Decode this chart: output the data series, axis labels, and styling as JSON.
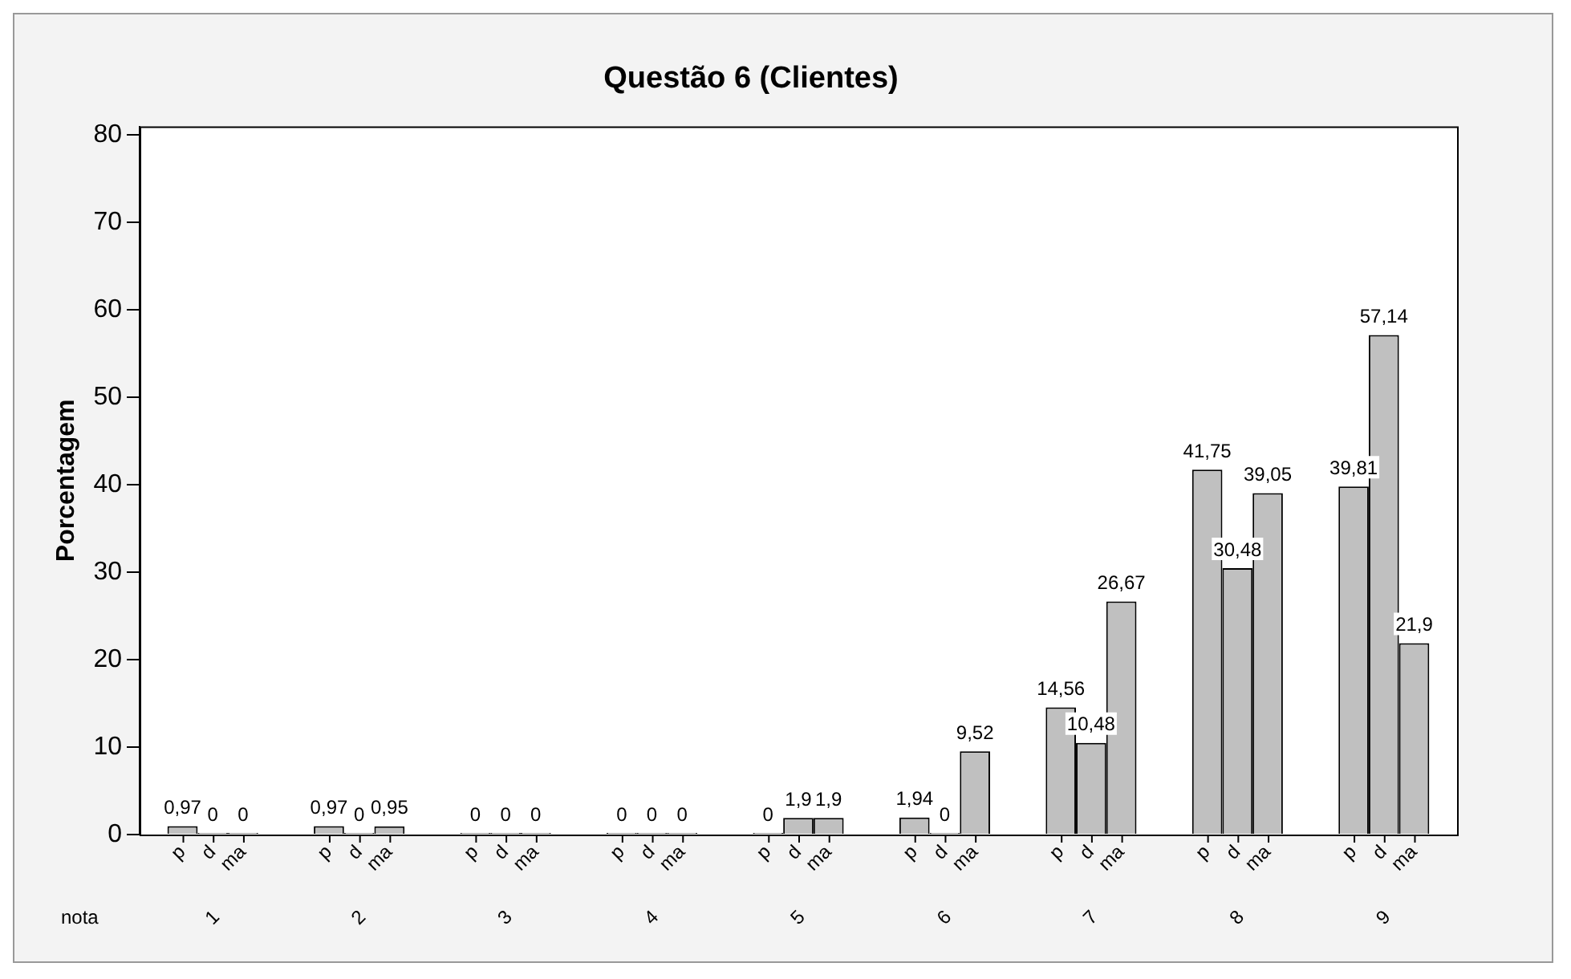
{
  "chart_data": {
    "type": "bar",
    "title": "Questão 6 (Clientes)",
    "ylabel": "Porcentagem",
    "xlabel": "nota",
    "categories": [
      "1",
      "2",
      "3",
      "4",
      "5",
      "6",
      "7",
      "8",
      "9"
    ],
    "series": [
      {
        "name": "p",
        "color": "#c0c0c0",
        "values": [
          0.97,
          0.97,
          0,
          0,
          0,
          1.94,
          14.56,
          41.75,
          39.81
        ],
        "value_labels": [
          "0,97",
          "0,97",
          "0",
          "0",
          "0",
          "1,94",
          "14,56",
          "41,75",
          "39,81"
        ]
      },
      {
        "name": "d",
        "color": "#c0c0c0",
        "values": [
          0,
          0,
          0,
          0,
          1.9,
          0,
          10.48,
          30.48,
          57.14
        ],
        "value_labels": [
          "0",
          "0",
          "0",
          "0",
          "1,9",
          "0",
          "10,48",
          "30,48",
          "57,14"
        ]
      },
      {
        "name": "ma",
        "color": "#c0c0c0",
        "values": [
          0,
          0.95,
          0,
          0,
          1.9,
          9.52,
          26.67,
          39.05,
          21.9
        ],
        "value_labels": [
          "0",
          "0,95",
          "0",
          "0",
          "1,9",
          "9,52",
          "26,67",
          "39,05",
          "21,9"
        ]
      }
    ],
    "ylim": [
      0,
      81
    ],
    "yticks": [
      0,
      10,
      20,
      30,
      40,
      50,
      60,
      70,
      80
    ],
    "grid": false,
    "legend": false
  }
}
